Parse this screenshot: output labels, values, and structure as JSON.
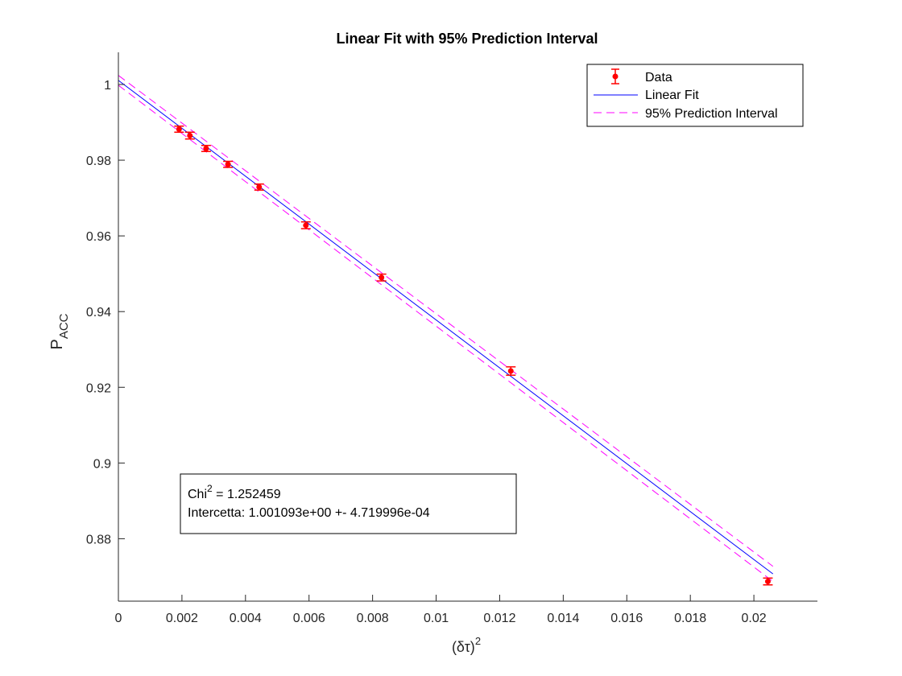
{
  "chart_data": {
    "type": "scatter",
    "title": "Linear Fit with 95% Prediction Interval",
    "xlabel": {
      "base": "(δτ)",
      "sup": "2"
    },
    "ylabel": {
      "base": "P",
      "sub": "ACC"
    },
    "xlim": [
      0,
      0.022
    ],
    "ylim": [
      0.8635,
      1.0085
    ],
    "xticks": [
      0,
      0.002,
      0.004,
      0.006,
      0.008,
      0.01,
      0.012,
      0.014,
      0.016,
      0.018,
      0.02
    ],
    "xtick_labels": [
      "0",
      "0.002",
      "0.004",
      "0.006",
      "0.008",
      "0.01",
      "0.012",
      "0.014",
      "0.016",
      "0.018",
      "0.02"
    ],
    "yticks": [
      0.88,
      0.9,
      0.92,
      0.94,
      0.96,
      0.98,
      1.0
    ],
    "ytick_labels": [
      "0.88",
      "0.9",
      "0.92",
      "0.94",
      "0.96",
      "0.98",
      "1"
    ],
    "grid": false,
    "legend_position": "top-right",
    "series": [
      {
        "name": "Data",
        "kind": "errorbar",
        "color": "#ff0000",
        "x": [
          0.00191,
          0.00225,
          0.00276,
          0.00345,
          0.00443,
          0.0059,
          0.00828,
          0.01235,
          0.02044
        ],
        "y": [
          0.9882,
          0.9865,
          0.9831,
          0.9789,
          0.9729,
          0.9628,
          0.949,
          0.9243,
          0.8687
        ],
        "err": [
          0.0008,
          0.0009,
          0.0008,
          0.0008,
          0.0008,
          0.0009,
          0.0009,
          0.0011,
          0.0009
        ]
      },
      {
        "name": "Linear Fit",
        "kind": "line",
        "color": "#0000ff",
        "x": [
          0,
          0.0206
        ],
        "y": [
          1.001093,
          0.8707
        ]
      },
      {
        "name": "95% Prediction Interval",
        "kind": "dashed",
        "color": "#ff00ff",
        "upper": {
          "x": [
            0,
            0.0206
          ],
          "y": [
            1.0024,
            0.8727
          ]
        },
        "lower": {
          "x": [
            0,
            0.0206
          ],
          "y": [
            0.9998,
            0.8687
          ]
        }
      }
    ],
    "annotation": {
      "line1_base": "Chi",
      "line1_sup": "2",
      "line1_rest": " = 1.252459",
      "line2": "Intercetta: 1.001093e+00 +- 4.719996e-04"
    }
  }
}
